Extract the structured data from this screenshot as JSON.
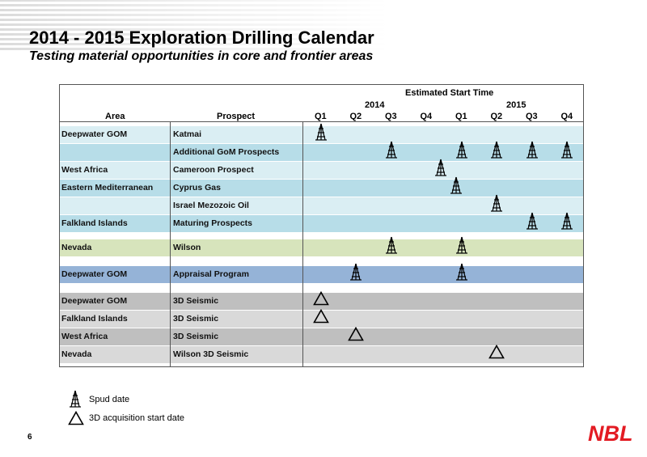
{
  "title": "2014 - 2015 Exploration Drilling Calendar",
  "subtitle": "Testing material opportunities in core and frontier areas",
  "table": {
    "header_estimated": "Estimated Start Time",
    "header_area": "Area",
    "header_prospect": "Prospect",
    "year_2014": "2014",
    "year_2015": "2015",
    "quarters": [
      "Q1",
      "Q2",
      "Q3",
      "Q4",
      "Q1",
      "Q2",
      "Q3",
      "Q4"
    ],
    "rows": [
      {
        "area": "Deepwater GOM",
        "prospect": "Katmai",
        "color": "#daeef3",
        "spud": [
          0
        ],
        "seismic": []
      },
      {
        "area": "",
        "prospect": "Additional GoM Prospects",
        "color": "#b7dde8",
        "spud": [
          2,
          4,
          5,
          6,
          7
        ],
        "seismic": []
      },
      {
        "area": "West Africa",
        "prospect": "Cameroon Prospect",
        "color": "#daeef3",
        "spud": [
          3.4
        ],
        "seismic": []
      },
      {
        "area": "Eastern Mediterranean",
        "prospect": "Cyprus Gas",
        "color": "#b7dde8",
        "spud": [
          3.85
        ],
        "seismic": []
      },
      {
        "area": "",
        "prospect": "Israel Mezozoic Oil",
        "color": "#daeef3",
        "spud": [
          5
        ],
        "seismic": []
      },
      {
        "area": "Falkland Islands",
        "prospect": "Maturing Prospects",
        "color": "#b7dde8",
        "spud": [
          6,
          7
        ],
        "seismic": []
      },
      {
        "area": "Nevada",
        "prospect": "Wilson",
        "color": "#d7e4bc",
        "spud": [
          2,
          4
        ],
        "seismic": []
      },
      {
        "area": "Deepwater GOM",
        "prospect": "Appraisal Program",
        "color": "#95b3d7",
        "spud": [
          1,
          4
        ],
        "seismic": []
      },
      {
        "area": "Deepwater GOM",
        "prospect": "3D Seismic",
        "color": "#bfbfbf",
        "spud": [],
        "seismic": [
          0
        ]
      },
      {
        "area": "Falkland Islands",
        "prospect": "3D Seismic",
        "color": "#d9d9d9",
        "spud": [],
        "seismic": [
          0
        ]
      },
      {
        "area": "West Africa",
        "prospect": "3D Seismic",
        "color": "#bfbfbf",
        "spud": [],
        "seismic": [
          1
        ]
      },
      {
        "area": "Nevada",
        "prospect": "Wilson 3D Seismic",
        "color": "#d9d9d9",
        "spud": [],
        "seismic": [
          5
        ]
      }
    ]
  },
  "legend": {
    "spud_label": "Spud date",
    "seismic_label": "3D acquisition start date"
  },
  "page_number": "6",
  "logo_text": "NBL",
  "colors": {
    "logo_red": "#e31b23"
  }
}
